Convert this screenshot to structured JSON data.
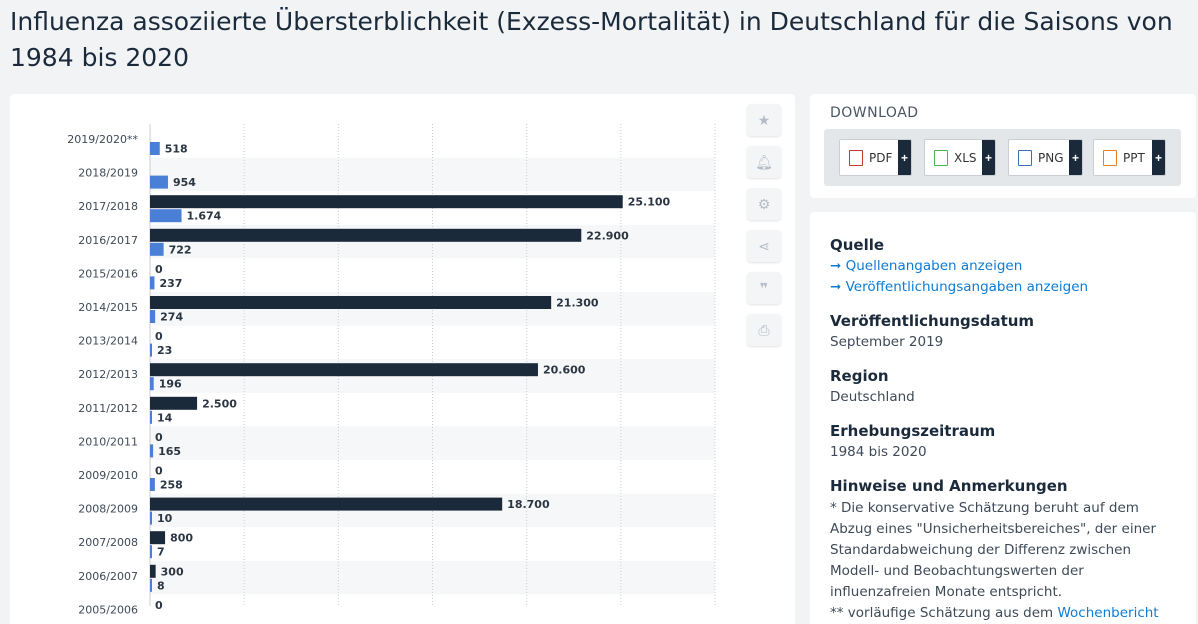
{
  "page": {
    "title": "Influenza assoziierte Übersterblichkeit (Exzess-Mortalität) in Deutschland für die Saisons von 1984 bis 2020"
  },
  "colors": {
    "series_dark": "#1b2a3b",
    "series_blue": "#4a7fd8",
    "link": "#0c7cd5"
  },
  "chart_data": {
    "type": "bar",
    "orientation": "horizontal",
    "categories": [
      "2019/2020**",
      "2018/2019",
      "2017/2018",
      "2016/2017",
      "2015/2016",
      "2014/2015",
      "2013/2014",
      "2012/2013",
      "2011/2012",
      "2010/2011",
      "2009/2010",
      "2008/2009",
      "2007/2008",
      "2006/2007",
      "2005/2006"
    ],
    "series": [
      {
        "values": [
          null,
          null,
          25100,
          22900,
          0,
          21300,
          0,
          20600,
          2500,
          0,
          0,
          18700,
          800,
          300,
          0
        ],
        "labels": [
          "",
          "",
          "25.100",
          "22.900",
          "0",
          "21.300",
          "0",
          "20.600",
          "2.500",
          "0",
          "0",
          "18.700",
          "800",
          "300",
          "0"
        ],
        "color": "#1b2a3b"
      },
      {
        "values": [
          518,
          954,
          1674,
          722,
          237,
          274,
          23,
          196,
          14,
          165,
          258,
          10,
          7,
          8,
          null
        ],
        "labels": [
          "518",
          "954",
          "1.674",
          "722",
          "237",
          "274",
          "23",
          "196",
          "14",
          "165",
          "258",
          "10",
          "7",
          "8",
          ""
        ],
        "color": "#4a7fd8"
      }
    ],
    "xlim": [
      0,
      30000
    ],
    "grid": true,
    "legend": "none"
  },
  "toolbar": {
    "icons": [
      "star-icon",
      "bell-icon",
      "gear-icon",
      "share-icon",
      "quote-icon",
      "print-icon"
    ]
  },
  "download": {
    "title": "DOWNLOAD",
    "buttons": [
      {
        "label": "PDF",
        "icon": "pdf-icon",
        "color": "#c0392b"
      },
      {
        "label": "XLS",
        "icon": "xls-icon",
        "color": "#4caf50"
      },
      {
        "label": "PNG",
        "icon": "png-icon",
        "color": "#3b6fb6"
      },
      {
        "label": "PPT",
        "icon": "ppt-icon",
        "color": "#e67e22"
      }
    ],
    "plus": "+"
  },
  "info": {
    "source_heading": "Quelle",
    "source_link_1": "➞ Quellenangaben anzeigen",
    "source_link_2": "➞ Veröffentlichungsangaben anzeigen",
    "pubdate_heading": "Veröffentlichungsdatum",
    "pubdate_value": "September 2019",
    "region_heading": "Region",
    "region_value": "Deutschland",
    "period_heading": "Erhebungszeitraum",
    "period_value": "1984 bis 2020",
    "notes_heading": "Hinweise und Anmerkungen",
    "notes_text_1": "* Die konservative Schätzung beruht auf dem Abzug eines \"Unsicherheitsbereiches\", der einer Standardabweichung der Differenz zwischen Modell- und Beobachtungswerten der influenzafreien Monate entspricht.",
    "notes_text_2": "** vorläufige Schätzung aus dem ",
    "notes_link": "Wochenbericht"
  }
}
